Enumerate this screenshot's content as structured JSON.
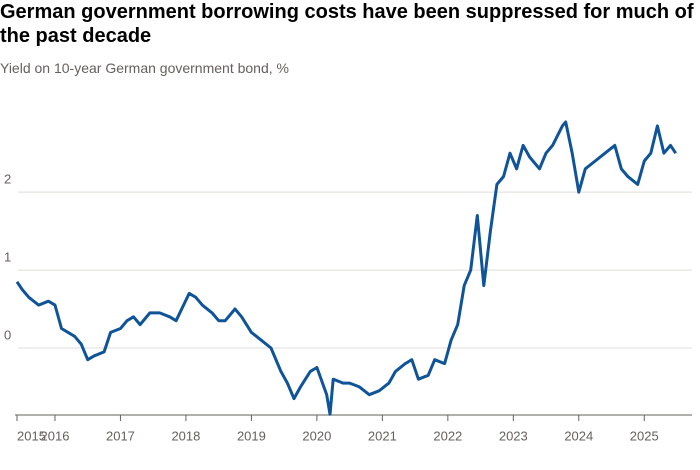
{
  "chart_data": {
    "type": "line",
    "title": "German government borrowing costs have been suppressed for much of the past decade",
    "subtitle": "Yield on 10-year German government bond, %",
    "xlim": [
      2015.42,
      2025.5
    ],
    "xticks": [
      {
        "value": 2015.42,
        "label": "2015"
      },
      2016,
      2017,
      2018,
      2019,
      2020,
      2021,
      2022,
      2023,
      2024,
      2025
    ],
    "ylim": [
      -0.86,
      2.99
    ],
    "yticks": [
      0,
      1,
      2
    ],
    "grid": true,
    "series": [
      {
        "color": "#0f5499",
        "x": [
          2015.42,
          2015.5,
          2015.6,
          2015.75,
          2015.9,
          2016.0,
          2016.1,
          2016.2,
          2016.3,
          2016.4,
          2016.5,
          2016.6,
          2016.75,
          2016.85,
          2017.0,
          2017.1,
          2017.2,
          2017.3,
          2017.45,
          2017.6,
          2017.75,
          2017.85,
          2018.05,
          2018.15,
          2018.25,
          2018.4,
          2018.5,
          2018.6,
          2018.75,
          2018.85,
          2019.0,
          2019.15,
          2019.3,
          2019.45,
          2019.55,
          2019.65,
          2019.75,
          2019.9,
          2020.0,
          2020.15,
          2020.2,
          2020.25,
          2020.4,
          2020.5,
          2020.65,
          2020.8,
          2020.95,
          2021.1,
          2021.2,
          2021.35,
          2021.45,
          2021.55,
          2021.7,
          2021.8,
          2021.95,
          2022.05,
          2022.15,
          2022.25,
          2022.35,
          2022.45,
          2022.55,
          2022.65,
          2022.75,
          2022.85,
          2022.95,
          2023.05,
          2023.15,
          2023.25,
          2023.4,
          2023.5,
          2023.6,
          2023.75,
          2023.8,
          2023.9,
          2024.0,
          2024.1,
          2024.25,
          2024.4,
          2024.55,
          2024.65,
          2024.75,
          2024.9,
          2025.0,
          2025.1,
          2025.2,
          2025.3,
          2025.4,
          2025.48
        ],
        "values": [
          0.85,
          0.75,
          0.65,
          0.55,
          0.6,
          0.55,
          0.25,
          0.2,
          0.15,
          0.05,
          -0.15,
          -0.1,
          -0.05,
          0.2,
          0.25,
          0.35,
          0.4,
          0.3,
          0.45,
          0.45,
          0.4,
          0.35,
          0.7,
          0.65,
          0.55,
          0.45,
          0.35,
          0.35,
          0.5,
          0.4,
          0.2,
          0.1,
          0.0,
          -0.3,
          -0.45,
          -0.65,
          -0.5,
          -0.3,
          -0.25,
          -0.6,
          -0.85,
          -0.4,
          -0.45,
          -0.45,
          -0.5,
          -0.6,
          -0.55,
          -0.45,
          -0.3,
          -0.2,
          -0.15,
          -0.4,
          -0.35,
          -0.15,
          -0.2,
          0.1,
          0.3,
          0.8,
          1.0,
          1.7,
          0.8,
          1.5,
          2.1,
          2.2,
          2.5,
          2.3,
          2.6,
          2.45,
          2.3,
          2.5,
          2.6,
          2.85,
          2.9,
          2.5,
          2.0,
          2.3,
          2.4,
          2.5,
          2.6,
          2.3,
          2.2,
          2.1,
          2.4,
          2.5,
          2.85,
          2.5,
          2.6,
          2.5
        ]
      }
    ]
  }
}
